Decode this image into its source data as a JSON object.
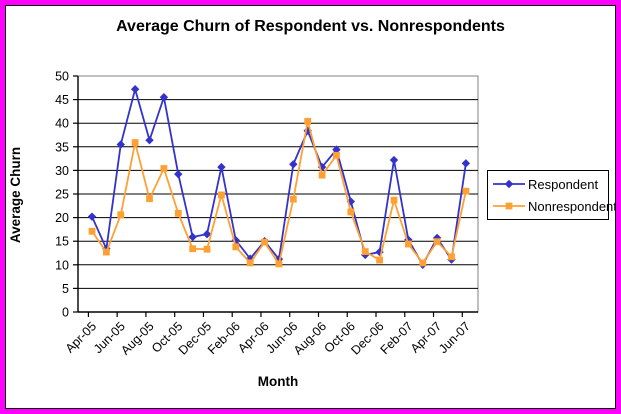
{
  "window": {
    "frame_border_color": "#FF00FF",
    "inner_border_color": "#000000",
    "background_color": "#FFFFFF"
  },
  "chart_data": {
    "type": "line",
    "title": "Average Churn of Respondent vs. Nonrespondents",
    "xlabel": "Month",
    "ylabel": "Average Churn",
    "ylim": [
      0,
      50
    ],
    "ytick_step": 5,
    "yticks": [
      0,
      5,
      10,
      15,
      20,
      25,
      30,
      35,
      40,
      45,
      50
    ],
    "grid": "horizontal",
    "gridline_color": "#000000",
    "plot_border_color": "#808080",
    "axis_color": "#000000",
    "legend_position": "right-middle",
    "categories": [
      "Apr-05",
      "May-05",
      "Jun-05",
      "Jul-05",
      "Aug-05",
      "Sep-05",
      "Oct-05",
      "Nov-05",
      "Dec-05",
      "Jan-06",
      "Feb-06",
      "Mar-06",
      "Apr-06",
      "May-06",
      "Jun-06",
      "Jul-06",
      "Aug-06",
      "Sep-06",
      "Oct-06",
      "Nov-06",
      "Dec-06",
      "Jan-07",
      "Feb-07",
      "Mar-07",
      "Apr-07",
      "May-07",
      "Jun-07"
    ],
    "xtick_labels": [
      "Apr-05",
      "Jun-05",
      "Aug-05",
      "Oct-05",
      "Dec-05",
      "Feb-06",
      "Apr-06",
      "Jun-06",
      "Aug-06",
      "Oct-06",
      "Dec-06",
      "Feb-07",
      "Apr-07",
      "Jun-07"
    ],
    "series": [
      {
        "name": "Respondent",
        "color": "#3333CC",
        "marker": "diamond",
        "values": [
          20.2,
          13.4,
          35.5,
          47.2,
          36.4,
          45.5,
          29.2,
          15.9,
          16.5,
          30.7,
          15.2,
          11.3,
          15.0,
          11.2,
          31.3,
          38.4,
          30.7,
          34.4,
          23.4,
          12.1,
          12.7,
          32.2,
          15.3,
          10.0,
          15.7,
          11.1,
          31.5
        ]
      },
      {
        "name": "Nonrespondent",
        "color": "#FFA033",
        "marker": "square",
        "values": [
          17.1,
          12.7,
          20.6,
          35.9,
          24.0,
          30.4,
          20.9,
          13.4,
          13.3,
          24.8,
          13.8,
          10.4,
          14.8,
          10.2,
          23.9,
          40.4,
          29.0,
          33.2,
          21.2,
          12.8,
          11.0,
          23.7,
          14.4,
          10.4,
          14.9,
          11.7,
          25.6
        ]
      }
    ]
  }
}
